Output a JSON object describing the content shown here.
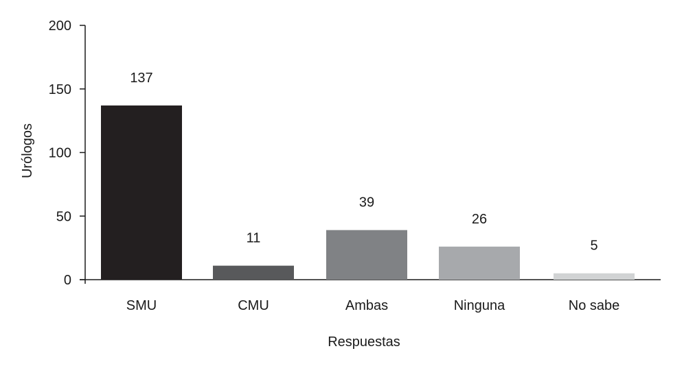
{
  "chart_data": {
    "type": "bar",
    "categories": [
      "SMU",
      "CMU",
      "Ambas",
      "Ninguna",
      "No sabe"
    ],
    "values": [
      137,
      11,
      39,
      26,
      5
    ],
    "bar_labels": [
      "137",
      "11",
      "39",
      "26",
      "5"
    ],
    "bar_colors": [
      "#231f20",
      "#58595b",
      "#808285",
      "#a7a9ac",
      "#d1d3d4"
    ],
    "xlabel": "Respuestas",
    "ylabel": "Urólogos",
    "ylim": [
      0,
      200
    ],
    "yticks": [
      0,
      50,
      100,
      150,
      200
    ],
    "grid": false,
    "legend": "none"
  }
}
